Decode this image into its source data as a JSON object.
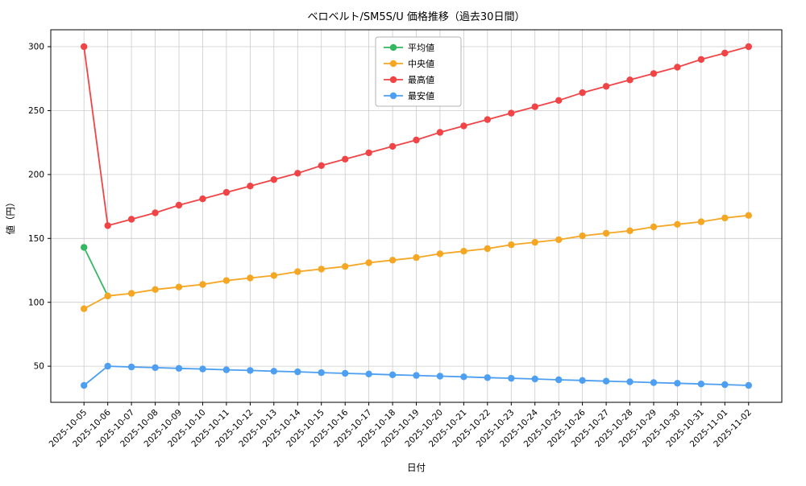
{
  "chart_data": {
    "type": "line",
    "title": "ベロベルト/SM5S/U 価格推移（過去30日間）",
    "xlabel": "日付",
    "ylabel": "値（円）",
    "grid": true,
    "legend_position": "upper center",
    "ylim": [
      21.75,
      313.25
    ],
    "yticks": [
      50,
      100,
      150,
      200,
      250,
      300
    ],
    "categories": [
      "2025-10-05",
      "2025-10-06",
      "2025-10-07",
      "2025-10-08",
      "2025-10-09",
      "2025-10-10",
      "2025-10-11",
      "2025-10-12",
      "2025-10-13",
      "2025-10-14",
      "2025-10-15",
      "2025-10-16",
      "2025-10-17",
      "2025-10-18",
      "2025-10-19",
      "2025-10-20",
      "2025-10-21",
      "2025-10-22",
      "2025-10-23",
      "2025-10-24",
      "2025-10-25",
      "2025-10-26",
      "2025-10-27",
      "2025-10-28",
      "2025-10-29",
      "2025-10-30",
      "2025-10-31",
      "2025-11-01",
      "2025-11-02"
    ],
    "series": [
      {
        "id": "average",
        "name": "平均値",
        "color": "#33b861",
        "values": [
          143,
          105,
          null,
          null,
          null,
          null,
          null,
          null,
          null,
          null,
          null,
          null,
          null,
          null,
          null,
          null,
          null,
          null,
          null,
          null,
          null,
          null,
          null,
          null,
          null,
          null,
          null,
          null,
          null
        ]
      },
      {
        "id": "median",
        "name": "中央値",
        "color": "#f5a623",
        "values": [
          95,
          105,
          107,
          110,
          112,
          114,
          117,
          119,
          121,
          124,
          126,
          128,
          131,
          133,
          135,
          138,
          140,
          142,
          145,
          147,
          149,
          152,
          154,
          156,
          159,
          161,
          163,
          166,
          168
        ]
      },
      {
        "id": "max",
        "name": "最高値",
        "color": "#f04446",
        "values": [
          300,
          160,
          165,
          170,
          176,
          181,
          186,
          191,
          196,
          201,
          207,
          212,
          217,
          222,
          227,
          233,
          238,
          243,
          248,
          253,
          258,
          264,
          269,
          274,
          279,
          284,
          290,
          295,
          300
        ]
      },
      {
        "id": "min",
        "name": "最安値",
        "color": "#4d9ff2",
        "values": [
          35,
          50,
          49.4,
          48.9,
          48.3,
          47.8,
          47.2,
          46.7,
          46.1,
          45.6,
          45,
          44.4,
          43.9,
          43.3,
          42.8,
          42.2,
          41.7,
          41.1,
          40.6,
          40,
          39.4,
          38.9,
          38.3,
          37.8,
          37.2,
          36.7,
          36.1,
          35.6,
          35
        ]
      }
    ]
  }
}
